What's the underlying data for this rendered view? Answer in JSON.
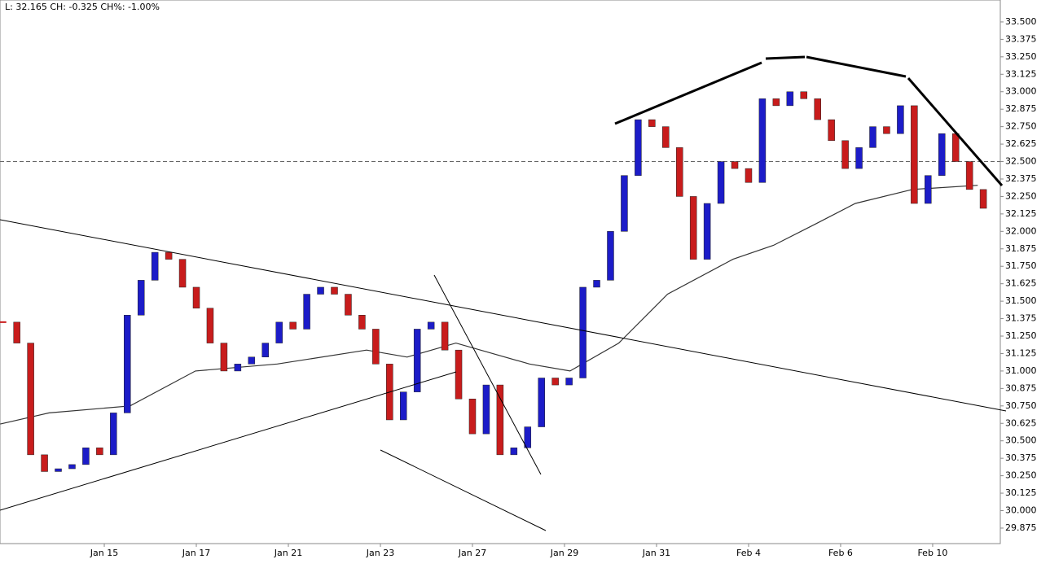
{
  "chart_data": {
    "type": "candlestick",
    "title": "L: 32.165 CH: -0.325 CH%: -1.00%",
    "x": [
      -0.1,
      0.05,
      0.2,
      0.35,
      0.5,
      0.65,
      0.8,
      0.95,
      1.1,
      1.25,
      1.4,
      1.55,
      1.7,
      1.85,
      2.0,
      2.15,
      2.3,
      2.45,
      2.6,
      2.75,
      2.9,
      3.05,
      3.2,
      3.35,
      3.5,
      3.65,
      3.8,
      3.95,
      4.1,
      4.25,
      4.4,
      4.55,
      4.7,
      4.85,
      5.0,
      5.15,
      5.3,
      5.45,
      5.6,
      5.75,
      5.9,
      6.05,
      6.2,
      6.35,
      6.5,
      6.65,
      6.8,
      6.95,
      7.1,
      7.25,
      7.4,
      7.55,
      7.7,
      7.85,
      8.0,
      8.15,
      8.3,
      8.45,
      8.6,
      8.75,
      8.9,
      9.05,
      9.2,
      9.35,
      9.5,
      9.65,
      9.8,
      9.95,
      10.1,
      10.25,
      10.4,
      10.55
    ],
    "values": [
      31.35,
      31.2,
      30.4,
      30.28,
      30.3,
      30.33,
      30.45,
      30.4,
      30.7,
      31.4,
      31.65,
      31.85,
      31.8,
      31.6,
      31.45,
      31.2,
      31.0,
      31.05,
      31.1,
      31.2,
      31.35,
      31.3,
      31.55,
      31.6,
      31.55,
      31.4,
      31.3,
      31.05,
      30.65,
      30.85,
      31.3,
      31.35,
      31.15,
      30.8,
      30.55,
      30.9,
      30.4,
      30.45,
      30.6,
      30.95,
      30.9,
      30.95,
      31.6,
      31.65,
      32.0,
      32.4,
      32.8,
      32.75,
      32.6,
      32.25,
      31.8,
      32.2,
      32.5,
      32.45,
      32.35,
      32.95,
      32.9,
      33.0,
      32.95,
      32.8,
      32.65,
      32.45,
      32.6,
      32.75,
      32.7,
      32.9,
      32.2,
      32.4,
      32.7,
      32.5,
      32.3,
      32.165
    ],
    "color_up": "#1c1cc8",
    "color_down": "#c81c1c",
    "overlay": {
      "color": "#333333",
      "x": [
        -0.13,
        0.4,
        1.28,
        1.99,
        2.88,
        3.85,
        4.29,
        4.82,
        5.62,
        6.06,
        6.59,
        7.12,
        7.83,
        8.27,
        8.72,
        9.16,
        9.78,
        10.49
      ],
      "values": [
        30.62,
        30.7,
        30.75,
        31.0,
        31.05,
        31.15,
        31.1,
        31.2,
        31.05,
        31.0,
        31.2,
        31.55,
        31.8,
        31.9,
        32.05,
        32.2,
        32.3,
        32.33
      ]
    },
    "ref_line": 32.5,
    "xlim": [
      -0.133,
      10.735
    ],
    "ylim": [
      29.764,
      33.657
    ],
    "xticks": [
      {
        "value": 1,
        "label": "Jan 15"
      },
      {
        "value": 2,
        "label": "Jan 17"
      },
      {
        "value": 3,
        "label": "Jan 21"
      },
      {
        "value": 4,
        "label": "Jan 23"
      },
      {
        "value": 5,
        "label": "Jan 27"
      },
      {
        "value": 6,
        "label": "Jan 29"
      },
      {
        "value": 7,
        "label": "Jan 31"
      },
      {
        "value": 8,
        "label": "Feb 4"
      },
      {
        "value": 9,
        "label": "Feb 6"
      },
      {
        "value": 10,
        "label": "Feb 10"
      }
    ],
    "yticks": [
      {
        "value": 29.875,
        "label": "29.875"
      },
      {
        "value": 30,
        "label": "30.000"
      },
      {
        "value": 30.125,
        "label": "30.125"
      },
      {
        "value": 30.25,
        "label": "30.250"
      },
      {
        "value": 30.375,
        "label": "30.375"
      },
      {
        "value": 30.5,
        "label": "30.500"
      },
      {
        "value": 30.625,
        "label": "30.625"
      },
      {
        "value": 30.75,
        "label": "30.750"
      },
      {
        "value": 30.875,
        "label": "30.875"
      },
      {
        "value": 31,
        "label": "31.000"
      },
      {
        "value": 31.125,
        "label": "31.125"
      },
      {
        "value": 31.25,
        "label": "31.250"
      },
      {
        "value": 31.375,
        "label": "31.375"
      },
      {
        "value": 31.5,
        "label": "31.500"
      },
      {
        "value": 31.625,
        "label": "31.625"
      },
      {
        "value": 31.75,
        "label": "31.750"
      },
      {
        "value": 31.875,
        "label": "31.875"
      },
      {
        "value": 32,
        "label": "32.000"
      },
      {
        "value": 32.125,
        "label": "32.125"
      },
      {
        "value": 32.25,
        "label": "32.250"
      },
      {
        "value": 32.375,
        "label": "32.375"
      },
      {
        "value": 32.5,
        "label": "32.500"
      },
      {
        "value": 32.625,
        "label": "32.625"
      },
      {
        "value": 32.75,
        "label": "32.750"
      },
      {
        "value": 32.875,
        "label": "32.875"
      },
      {
        "value": 33,
        "label": "33.000"
      },
      {
        "value": 33.125,
        "label": "33.125"
      },
      {
        "value": 33.25,
        "label": "33.250"
      },
      {
        "value": 33.375,
        "label": "33.375"
      },
      {
        "value": 33.5,
        "label": "33.500"
      }
    ],
    "grid": true
  }
}
